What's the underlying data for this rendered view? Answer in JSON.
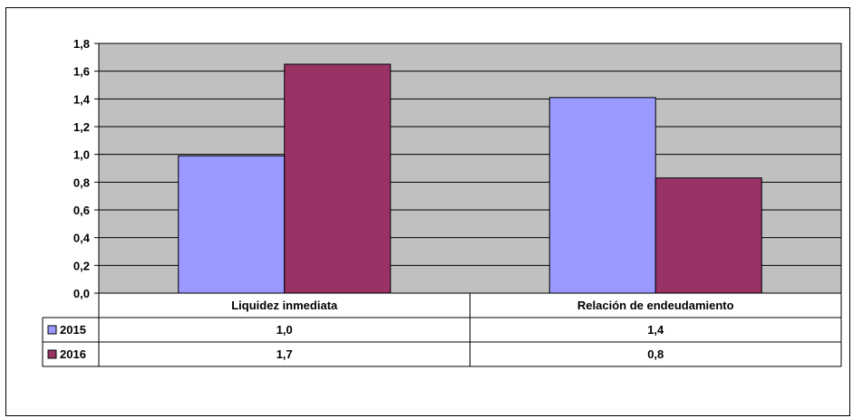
{
  "chart_data": {
    "type": "bar",
    "title": "",
    "xlabel": "",
    "ylabel": "",
    "categories": [
      "Liquidez inmediata",
      "Relación de endeudamiento"
    ],
    "series": [
      {
        "name": "2015",
        "values": [
          0.99,
          1.41
        ],
        "color": "#9999FF",
        "table_values": [
          "1,0",
          "1,4"
        ]
      },
      {
        "name": "2016",
        "values": [
          1.65,
          0.83
        ],
        "color": "#993366",
        "table_values": [
          "1,7",
          "0,8"
        ]
      }
    ],
    "ylim": [
      0,
      1.8
    ],
    "yticks": [
      0.0,
      0.2,
      0.4,
      0.6,
      0.8,
      1.0,
      1.2,
      1.4,
      1.6,
      1.8
    ],
    "ytick_labels": [
      "0,0",
      "0,2",
      "0,4",
      "0,6",
      "0,8",
      "1,0",
      "1,2",
      "1,4",
      "1,6",
      "1,8"
    ],
    "grid": true,
    "plot_background": "#C0C0C0",
    "data_table": true
  }
}
